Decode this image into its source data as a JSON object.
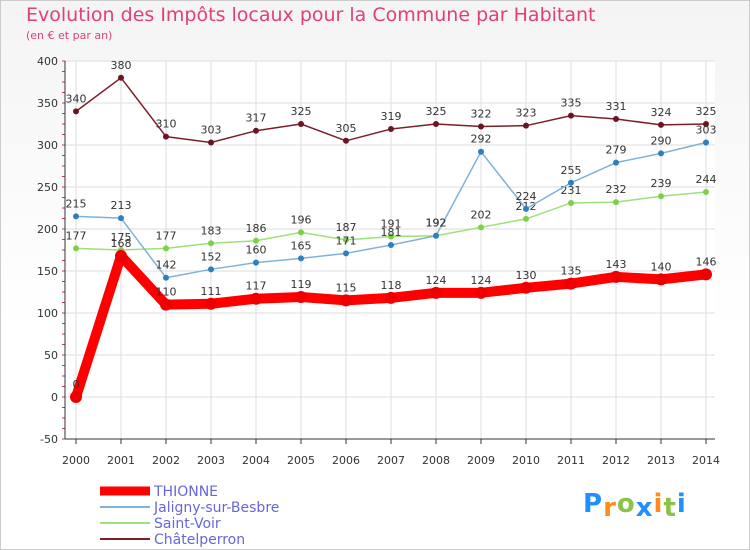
{
  "title": "Evolution des Impôts locaux pour la Commune par Habitant",
  "subtitle": "(en € et par an)",
  "logo": {
    "letters": [
      {
        "ch": "P",
        "color": "#1e90ff"
      },
      {
        "ch": "r",
        "color": "#ff8c1a"
      },
      {
        "ch": "o",
        "color": "#8bc34a"
      },
      {
        "ch": "x",
        "color": "#1e90ff"
      },
      {
        "ch": "i",
        "color": "#ff8c1a"
      },
      {
        "ch": "t",
        "color": "#8bc34a"
      },
      {
        "ch": "i",
        "color": "#1e90ff"
      }
    ]
  },
  "chart_data": {
    "type": "line",
    "title": "Evolution des Impôts locaux pour la Commune par Habitant",
    "subtitle": "(en € et par an)",
    "xlabel": "",
    "ylabel": "",
    "ylim": [
      -50,
      400
    ],
    "yticks": [
      -50,
      0,
      50,
      100,
      150,
      200,
      250,
      300,
      350,
      400
    ],
    "grid": true,
    "legend": "bottom-left",
    "x": [
      "2000",
      "2001",
      "2002",
      "2003",
      "2004",
      "2005",
      "2006",
      "2007",
      "2008",
      "2009",
      "2010",
      "2011",
      "2012",
      "2013",
      "2014"
    ],
    "series": [
      {
        "name": "Châtelperron",
        "color": "#7b1f2b",
        "marker": "#6b1520",
        "values": [
          340,
          380,
          310,
          303,
          317,
          325,
          305,
          319,
          325,
          322,
          323,
          335,
          331,
          324,
          325
        ]
      },
      {
        "name": "Saint-Voir",
        "color": "#9ee07a",
        "marker": "#7cd04a",
        "values": [
          177,
          175,
          177,
          183,
          186,
          196,
          187,
          191,
          192,
          202,
          212,
          231,
          232,
          239,
          244
        ]
      },
      {
        "name": "Jaligny-sur-Besbre",
        "color": "#7fb3d9",
        "marker": "#2f7fc0",
        "values": [
          215,
          213,
          142,
          152,
          160,
          165,
          171,
          181,
          192,
          292,
          224,
          255,
          279,
          290,
          303
        ]
      },
      {
        "name": "THIONNE",
        "color": "#ff0000",
        "marker": "#ee0000",
        "values": [
          0,
          168,
          110,
          111,
          117,
          119,
          115,
          118,
          124,
          124,
          130,
          135,
          143,
          140,
          146
        ]
      }
    ],
    "legend_order": [
      "THIONNE",
      "Jaligny-sur-Besbre",
      "Saint-Voir",
      "Châtelperron"
    ]
  }
}
